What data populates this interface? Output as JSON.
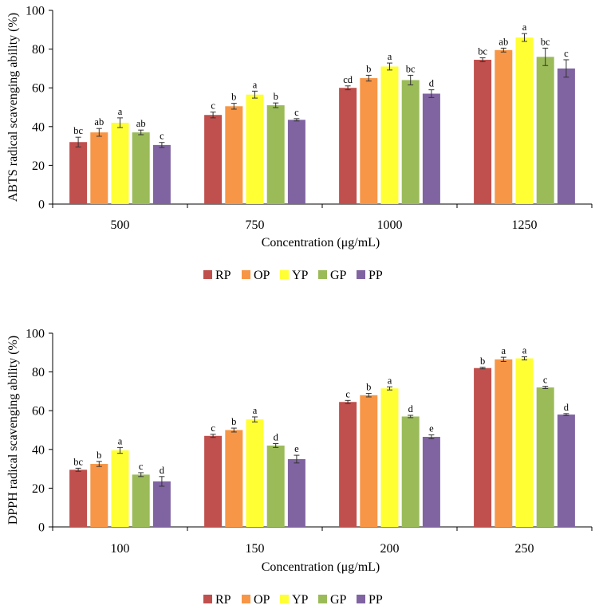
{
  "chart_data": [
    {
      "type": "bar",
      "title": "",
      "xlabel": "Concentration (μg/mL)",
      "ylabel": "ABTS radical scavenging ability  (%)",
      "ylim": [
        0,
        100
      ],
      "yticks": [
        0,
        20,
        40,
        60,
        80,
        100
      ],
      "categories": [
        "500",
        "750",
        "1000",
        "1250"
      ],
      "series": [
        {
          "name": "RP",
          "color": "#c0504d",
          "values": [
            32,
            46,
            60,
            74.5
          ],
          "errors": [
            2.5,
            1.5,
            1,
            1
          ],
          "letters": [
            "bc",
            "c",
            "cd",
            "bc"
          ]
        },
        {
          "name": "OP",
          "color": "#f79646",
          "values": [
            37,
            50.5,
            65,
            79.5
          ],
          "errors": [
            2,
            1.5,
            1.5,
            1
          ],
          "letters": [
            "ab",
            "b",
            "b",
            "ab"
          ]
        },
        {
          "name": "YP",
          "color": "#ffff33",
          "values": [
            42,
            56.5,
            71,
            86
          ],
          "errors": [
            2.5,
            1.8,
            1.8,
            2
          ],
          "letters": [
            "a",
            "a",
            "a",
            "a"
          ]
        },
        {
          "name": "GP",
          "color": "#9bbb59",
          "values": [
            37,
            51,
            64,
            76
          ],
          "errors": [
            1.2,
            1.2,
            2.5,
            4.5
          ],
          "letters": [
            "ab",
            "b",
            "bc",
            "bc"
          ]
        },
        {
          "name": "PP",
          "color": "#8064a2",
          "values": [
            30.5,
            43.5,
            57,
            70
          ],
          "errors": [
            1.3,
            0.6,
            2,
            4.5
          ],
          "letters": [
            "c",
            "c",
            "d",
            "c"
          ]
        }
      ],
      "legend_position": "bottom"
    },
    {
      "type": "bar",
      "title": "",
      "xlabel": "Concentration (μg/mL)",
      "ylabel": "DPPH radical scavenging ability  (%)",
      "ylim": [
        0,
        100
      ],
      "yticks": [
        0,
        20,
        40,
        60,
        80,
        100
      ],
      "categories": [
        "100",
        "150",
        "200",
        "250"
      ],
      "series": [
        {
          "name": "RP",
          "color": "#c0504d",
          "values": [
            29.5,
            47,
            64.5,
            82
          ],
          "errors": [
            0.8,
            0.8,
            0.8,
            0.4
          ],
          "letters": [
            "bc",
            "c",
            "c",
            "b"
          ]
        },
        {
          "name": "OP",
          "color": "#f79646",
          "values": [
            32.5,
            50,
            68,
            86.5
          ],
          "errors": [
            1.3,
            1,
            0.9,
            1.1
          ],
          "letters": [
            "b",
            "b",
            "b",
            "a"
          ]
        },
        {
          "name": "YP",
          "color": "#ffff33",
          "values": [
            39.5,
            55.5,
            71.5,
            87
          ],
          "errors": [
            1.5,
            1.3,
            0.8,
            0.8
          ],
          "letters": [
            "a",
            "a",
            "a",
            "a"
          ]
        },
        {
          "name": "GP",
          "color": "#9bbb59",
          "values": [
            27,
            42,
            57,
            72
          ],
          "errors": [
            1,
            1,
            0.6,
            0.6
          ],
          "letters": [
            "c",
            "d",
            "d",
            "c"
          ]
        },
        {
          "name": "PP",
          "color": "#8064a2",
          "values": [
            23.5,
            35,
            46.5,
            58
          ],
          "errors": [
            2.5,
            2,
            1,
            0.5
          ],
          "letters": [
            "d",
            "e",
            "e",
            "d"
          ]
        }
      ],
      "legend_position": "bottom"
    }
  ]
}
